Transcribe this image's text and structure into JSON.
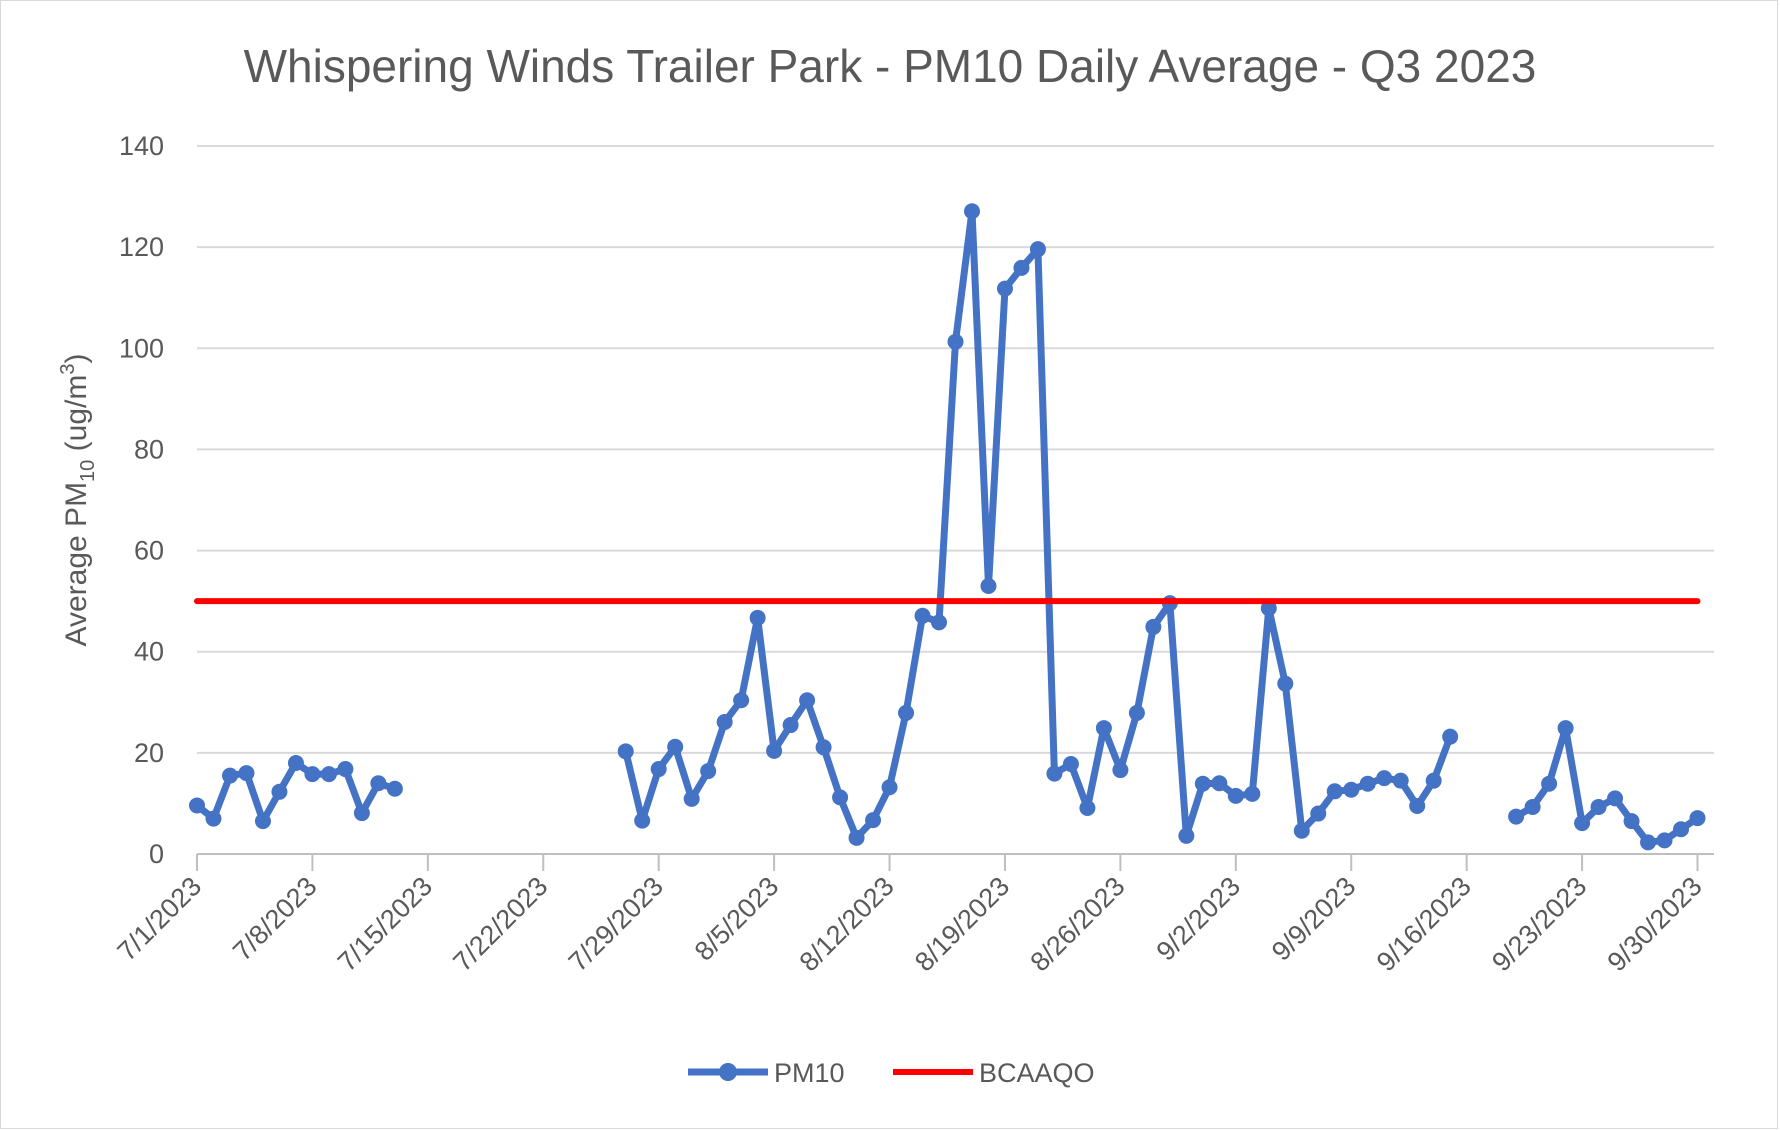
{
  "chart_data": {
    "type": "line",
    "title": "Whispering Winds Trailer Park - PM10 Daily Average - Q3 2023",
    "ylabel": {
      "prefix": "Average PM",
      "sub": "10",
      "mid": " (ug/m",
      "sup": "3",
      "suffix": ")"
    },
    "xlabel": "",
    "ylim": [
      0,
      140
    ],
    "yticks": [
      0,
      20,
      40,
      60,
      80,
      100,
      120,
      140
    ],
    "xlim": [
      "2023-07-01",
      "2023-10-01"
    ],
    "xticks": [
      "7/1/2023",
      "7/8/2023",
      "7/15/2023",
      "7/22/2023",
      "7/29/2023",
      "8/5/2023",
      "8/12/2023",
      "8/19/2023",
      "8/26/2023",
      "9/2/2023",
      "9/9/2023",
      "9/16/2023",
      "9/23/2023",
      "9/30/2023"
    ],
    "grid": true,
    "legend_position": "bottom",
    "series": [
      {
        "name": "PM10",
        "color": "#4472c4",
        "marker": "circle",
        "points": [
          [
            "7/1/2023",
            9.6
          ],
          [
            "7/2/2023",
            7.0
          ],
          [
            "7/3/2023",
            15.5
          ],
          [
            "7/4/2023",
            16.0
          ],
          [
            "7/5/2023",
            6.5
          ],
          [
            "7/6/2023",
            12.3
          ],
          [
            "7/7/2023",
            18.0
          ],
          [
            "7/8/2023",
            15.8
          ],
          [
            "7/9/2023",
            15.8
          ],
          [
            "7/10/2023",
            16.8
          ],
          [
            "7/11/2023",
            8.1
          ],
          [
            "7/12/2023",
            14.0
          ],
          [
            "7/13/2023",
            12.9
          ],
          [
            "7/14/2023",
            null
          ],
          [
            "7/15/2023",
            null
          ],
          [
            "7/16/2023",
            null
          ],
          [
            "7/17/2023",
            null
          ],
          [
            "7/18/2023",
            null
          ],
          [
            "7/19/2023",
            null
          ],
          [
            "7/20/2023",
            null
          ],
          [
            "7/21/2023",
            null
          ],
          [
            "7/22/2023",
            null
          ],
          [
            "7/23/2023",
            null
          ],
          [
            "7/24/2023",
            null
          ],
          [
            "7/25/2023",
            null
          ],
          [
            "7/26/2023",
            null
          ],
          [
            "7/27/2023",
            20.3
          ],
          [
            "7/28/2023",
            6.6
          ],
          [
            "7/29/2023",
            16.8
          ],
          [
            "7/30/2023",
            21.2
          ],
          [
            "7/31/2023",
            10.9
          ],
          [
            "8/1/2023",
            16.4
          ],
          [
            "8/2/2023",
            26.1
          ],
          [
            "8/3/2023",
            30.4
          ],
          [
            "8/4/2023",
            46.7
          ],
          [
            "8/5/2023",
            20.4
          ],
          [
            "8/6/2023",
            25.5
          ],
          [
            "8/7/2023",
            30.4
          ],
          [
            "8/8/2023",
            21.1
          ],
          [
            "8/9/2023",
            11.2
          ],
          [
            "8/10/2023",
            3.2
          ],
          [
            "8/11/2023",
            6.7
          ],
          [
            "8/12/2023",
            13.2
          ],
          [
            "8/13/2023",
            27.9
          ],
          [
            "8/14/2023",
            47.1
          ],
          [
            "8/15/2023",
            45.8
          ],
          [
            "8/16/2023",
            101.3
          ],
          [
            "8/17/2023",
            127.1
          ],
          [
            "8/18/2023",
            53.0
          ],
          [
            "8/19/2023",
            111.8
          ],
          [
            "8/20/2023",
            115.9
          ],
          [
            "8/21/2023",
            119.6
          ],
          [
            "8/22/2023",
            15.9
          ],
          [
            "8/23/2023",
            17.8
          ],
          [
            "8/24/2023",
            9.1
          ],
          [
            "8/25/2023",
            24.9
          ],
          [
            "8/26/2023",
            16.6
          ],
          [
            "8/27/2023",
            27.9
          ],
          [
            "8/28/2023",
            44.9
          ],
          [
            "8/29/2023",
            49.6
          ],
          [
            "8/30/2023",
            3.6
          ],
          [
            "8/31/2023",
            13.9
          ],
          [
            "9/1/2023",
            14.0
          ],
          [
            "9/2/2023",
            11.5
          ],
          [
            "9/3/2023",
            11.9
          ],
          [
            "9/4/2023",
            48.6
          ],
          [
            "9/5/2023",
            33.7
          ],
          [
            "9/6/2023",
            4.6
          ],
          [
            "9/7/2023",
            8.0
          ],
          [
            "9/8/2023",
            12.4
          ],
          [
            "9/9/2023",
            12.7
          ],
          [
            "9/10/2023",
            13.9
          ],
          [
            "9/11/2023",
            15.0
          ],
          [
            "9/12/2023",
            14.5
          ],
          [
            "9/13/2023",
            9.5
          ],
          [
            "9/14/2023",
            14.5
          ],
          [
            "9/15/2023",
            23.2
          ],
          [
            "9/16/2023",
            null
          ],
          [
            "9/17/2023",
            null
          ],
          [
            "9/18/2023",
            null
          ],
          [
            "9/19/2023",
            7.4
          ],
          [
            "9/20/2023",
            9.3
          ],
          [
            "9/21/2023",
            13.9
          ],
          [
            "9/22/2023",
            24.9
          ],
          [
            "9/23/2023",
            6.1
          ],
          [
            "9/24/2023",
            9.3
          ],
          [
            "9/25/2023",
            11.0
          ],
          [
            "9/26/2023",
            6.5
          ],
          [
            "9/27/2023",
            2.3
          ],
          [
            "9/28/2023",
            2.7
          ],
          [
            "9/29/2023",
            4.9
          ],
          [
            "9/30/2023",
            7.1
          ]
        ]
      },
      {
        "name": "BCAAQO",
        "color": "#ff0000",
        "marker": "none",
        "points": [
          [
            "7/1/2023",
            50
          ],
          [
            "9/30/2023",
            50
          ]
        ]
      }
    ]
  }
}
